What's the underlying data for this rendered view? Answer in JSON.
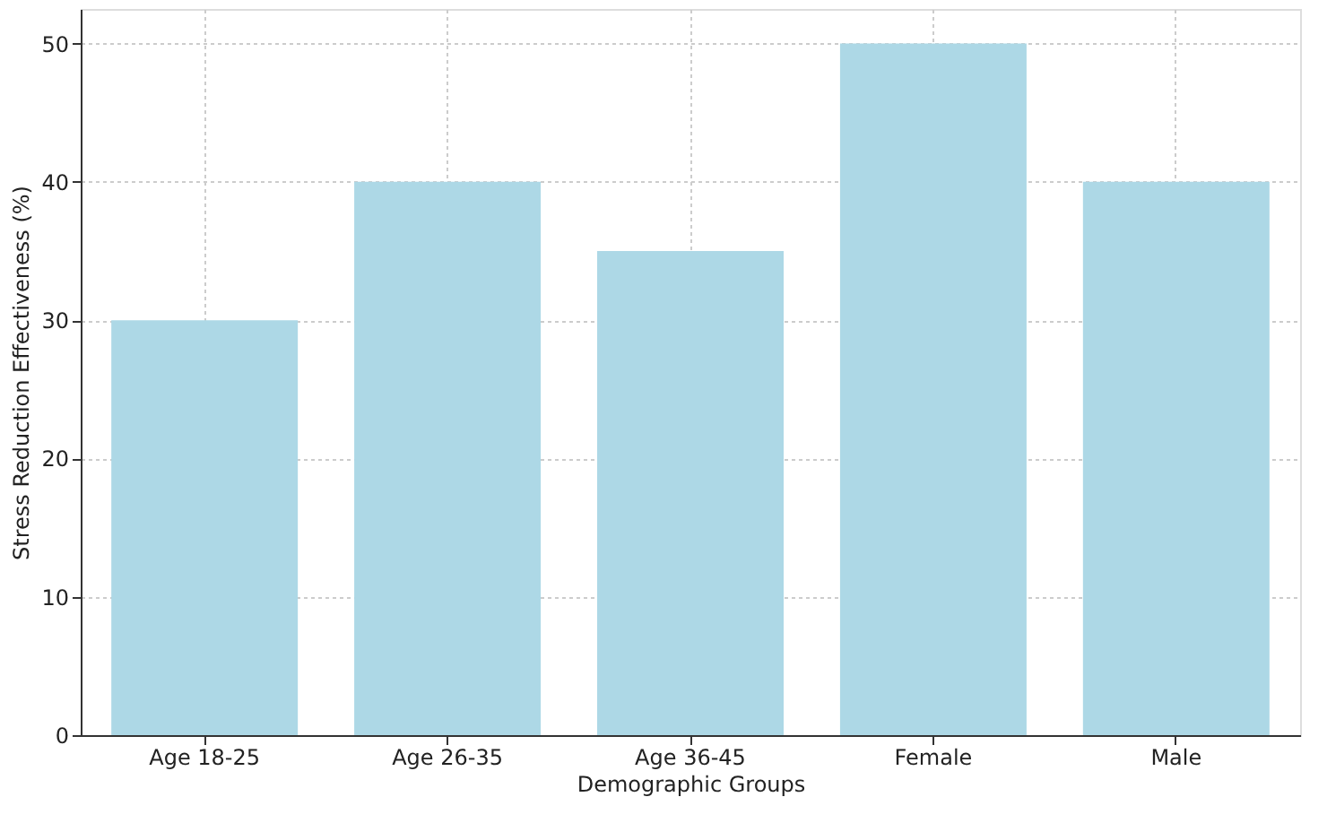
{
  "chart_data": {
    "type": "bar",
    "xlabel": "Demographic Groups",
    "ylabel": "Stress Reduction Effectiveness (%)",
    "categories": [
      "Age 18-25",
      "Age 26-35",
      "Age 36-45",
      "Female",
      "Male"
    ],
    "values": [
      30,
      40,
      35,
      50,
      40
    ],
    "color": "#add8e6",
    "ylim": [
      0,
      52.5
    ],
    "yticks": [
      0,
      10,
      20,
      30,
      40,
      50
    ],
    "grid": true
  }
}
